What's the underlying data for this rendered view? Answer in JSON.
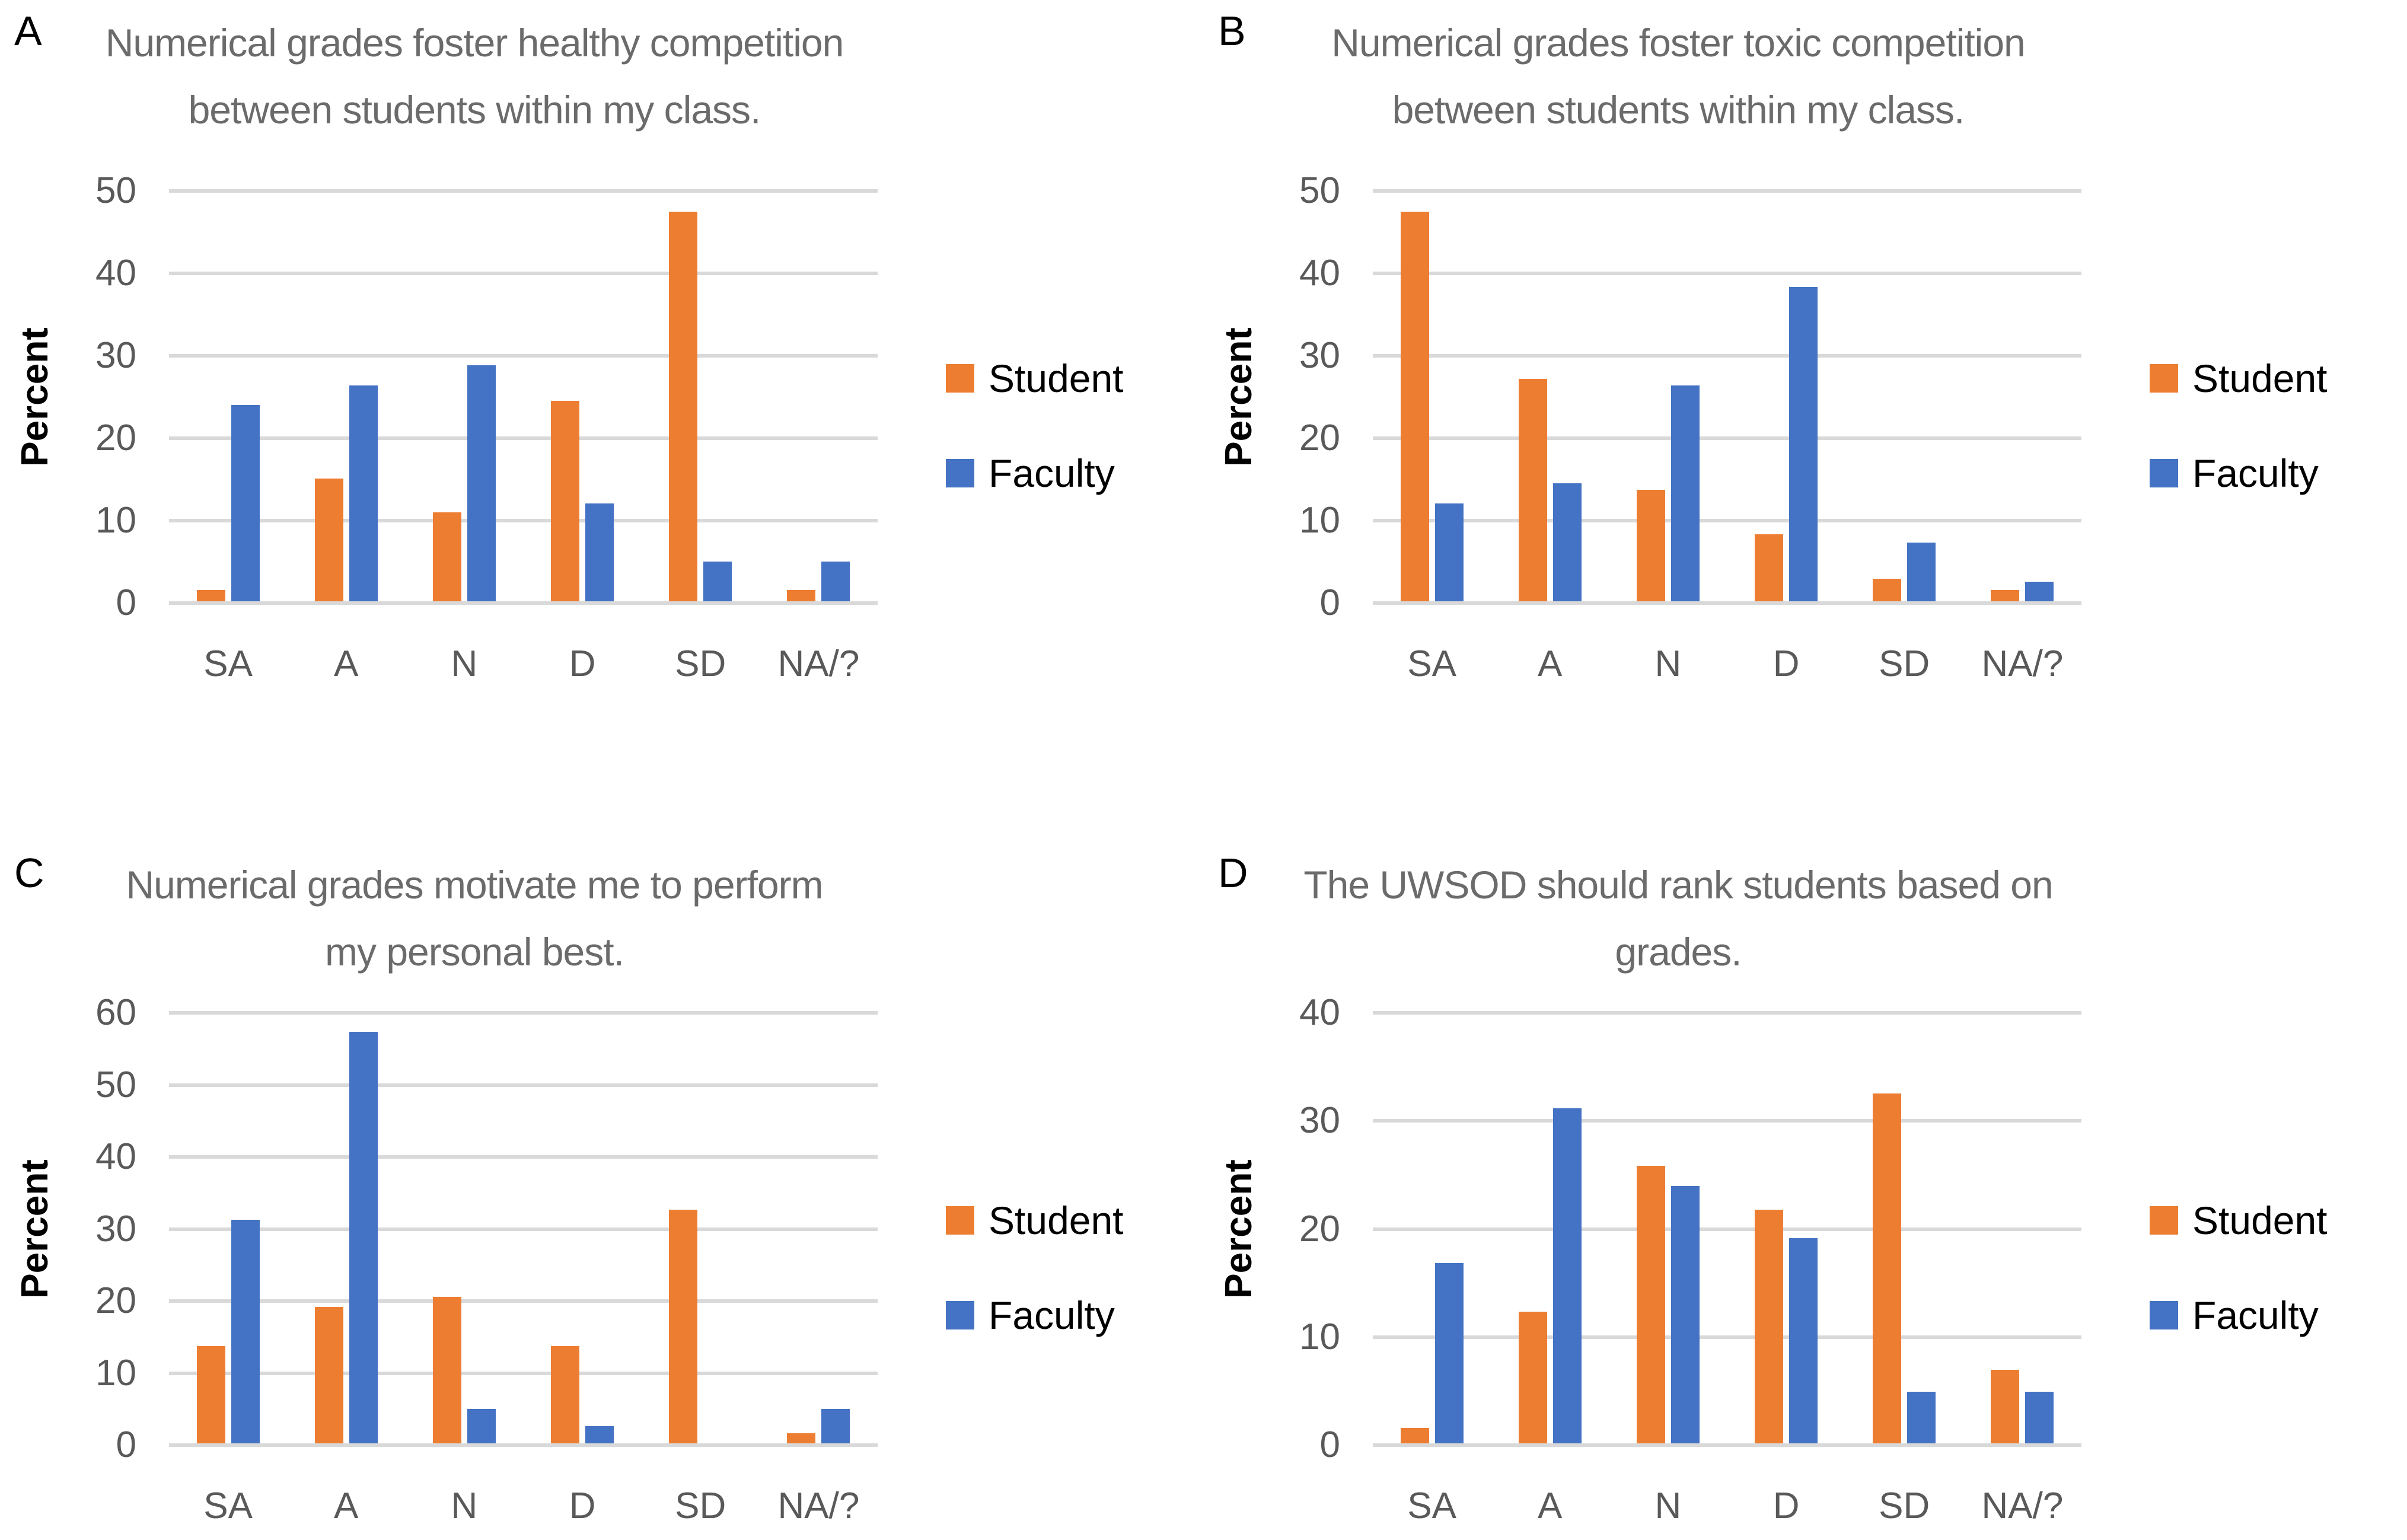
{
  "figure": {
    "description_visible_text_only": true,
    "y_axis_label": "Percent",
    "categories": [
      "SA",
      "A",
      "N",
      "D",
      "SD",
      "NA/?"
    ],
    "legend": {
      "position": "right",
      "items": [
        {
          "label": "Student",
          "color": "#ED7D31"
        },
        {
          "label": "Faculty",
          "color": "#4472C4"
        }
      ]
    },
    "colors": {
      "student": "#ED7D31",
      "faculty": "#4472C4",
      "gridline": "#D9D9D9",
      "tick_text": "#595959",
      "category_text": "#595959",
      "title_text": "#6B6B6B",
      "letter_text": "#000000",
      "legend_text": "#000000",
      "background": "#FFFFFF"
    }
  },
  "chart_data": [
    {
      "type": "bar",
      "panel_letter": "A",
      "title": "Numerical grades foster healthy competition between students within my class.",
      "title_lines": [
        "Numerical grades foster healthy competition",
        "between students within my class."
      ],
      "xlabel": "",
      "ylabel": "Percent",
      "categories": [
        "SA",
        "A",
        "N",
        "D",
        "SD",
        "NA/?"
      ],
      "ylim": [
        0,
        50
      ],
      "yticks": [
        0,
        10,
        20,
        30,
        40,
        50
      ],
      "grid": true,
      "legend_position": "right",
      "series": [
        {
          "name": "Student",
          "values": [
            1.4,
            14.9,
            10.8,
            24.3,
            47.3,
            1.4
          ]
        },
        {
          "name": "Faculty",
          "values": [
            23.8,
            26.2,
            28.6,
            11.9,
            4.8,
            4.8
          ]
        }
      ]
    },
    {
      "type": "bar",
      "panel_letter": "B",
      "title": "Numerical grades foster toxic competition between students within my class.",
      "title_lines": [
        "Numerical grades foster toxic competition",
        "between students within my class."
      ],
      "xlabel": "",
      "ylabel": "Percent",
      "categories": [
        "SA",
        "A",
        "N",
        "D",
        "SD",
        "NA/?"
      ],
      "ylim": [
        0,
        50
      ],
      "yticks": [
        0,
        10,
        20,
        30,
        40,
        50
      ],
      "grid": true,
      "legend_position": "right",
      "series": [
        {
          "name": "Student",
          "values": [
            47.3,
            27.0,
            13.5,
            8.1,
            2.7,
            1.4
          ]
        },
        {
          "name": "Faculty",
          "values": [
            11.9,
            14.3,
            26.2,
            38.1,
            7.1,
            2.4
          ]
        }
      ]
    },
    {
      "type": "bar",
      "panel_letter": "C",
      "title": "Numerical grades motivate me to perform my personal best.",
      "title_lines": [
        "Numerical grades motivate me to perform",
        "my personal best."
      ],
      "xlabel": "",
      "ylabel": "Percent",
      "categories": [
        "SA",
        "A",
        "N",
        "D",
        "SD",
        "NA/?"
      ],
      "ylim": [
        0,
        60
      ],
      "yticks": [
        0,
        10,
        20,
        30,
        40,
        50,
        60
      ],
      "grid": true,
      "legend_position": "right",
      "series": [
        {
          "name": "Student",
          "values": [
            13.5,
            18.9,
            20.3,
            13.5,
            32.4,
            1.4
          ]
        },
        {
          "name": "Faculty",
          "values": [
            31.0,
            57.1,
            4.8,
            2.4,
            0,
            4.8
          ]
        }
      ]
    },
    {
      "type": "bar",
      "panel_letter": "D",
      "title": "The UWSOD should rank students based on grades.",
      "title_lines": [
        "The UWSOD should rank students based on",
        "grades."
      ],
      "xlabel": "",
      "ylabel": "Percent",
      "categories": [
        "SA",
        "A",
        "N",
        "D",
        "SD",
        "NA/?"
      ],
      "ylim": [
        0,
        40
      ],
      "yticks": [
        0,
        10,
        20,
        30,
        40
      ],
      "grid": true,
      "legend_position": "right",
      "series": [
        {
          "name": "Student",
          "values": [
            1.4,
            12.2,
            25.7,
            21.6,
            32.4,
            6.8
          ]
        },
        {
          "name": "Faculty",
          "values": [
            16.7,
            31.0,
            23.8,
            19.0,
            4.8,
            4.8
          ]
        }
      ]
    }
  ]
}
